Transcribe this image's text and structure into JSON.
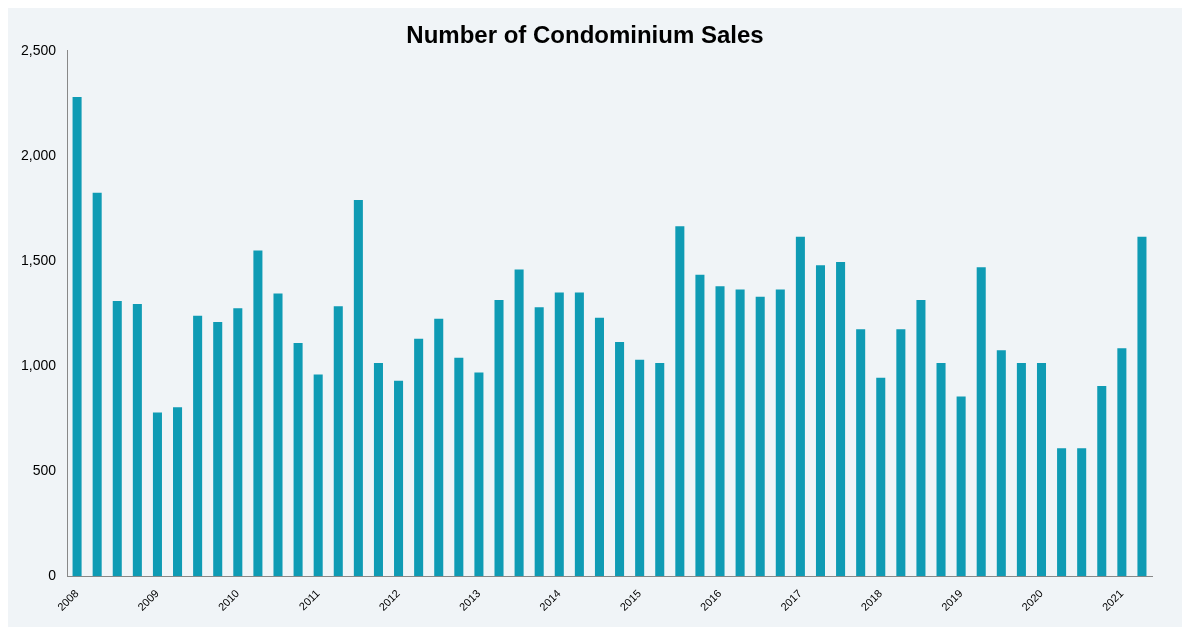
{
  "chart_data": {
    "type": "bar",
    "title": "Number of Condominium Sales",
    "categories": [
      "2008",
      null,
      null,
      null,
      "2009",
      null,
      null,
      null,
      "2010",
      null,
      null,
      null,
      "2011",
      null,
      null,
      null,
      "2012",
      null,
      null,
      null,
      "2013",
      null,
      null,
      null,
      "2014",
      null,
      null,
      null,
      "2015",
      null,
      null,
      null,
      "2016",
      null,
      null,
      null,
      "2017",
      null,
      null,
      null,
      "2018",
      null,
      null,
      null,
      "2019",
      null,
      null,
      null,
      "2020",
      null,
      null,
      null,
      "2021",
      null
    ],
    "values": [
      2280,
      1825,
      1310,
      1295,
      780,
      805,
      1240,
      1210,
      1275,
      1550,
      1345,
      1110,
      960,
      1285,
      1790,
      1015,
      930,
      1130,
      1225,
      1040,
      970,
      1315,
      1460,
      1280,
      1350,
      1350,
      1230,
      1115,
      1030,
      1015,
      1665,
      1435,
      1380,
      1365,
      1330,
      1365,
      1615,
      1480,
      1495,
      1175,
      945,
      1175,
      1315,
      1015,
      855,
      1470,
      1075,
      1015,
      1015,
      610,
      610,
      905,
      1085,
      1615
    ],
    "color": "#0f9bb4",
    "ylim": [
      0,
      2500
    ],
    "yticks": [
      0,
      {
        "value": 500,
        "label": "500"
      },
      {
        "value": 1000,
        "label": "1,000"
      },
      {
        "value": 1500,
        "label": "1,500"
      },
      {
        "value": 2000,
        "label": "2,000"
      },
      {
        "value": 2500,
        "label": "2,500"
      }
    ],
    "grid": false,
    "legend": false
  }
}
